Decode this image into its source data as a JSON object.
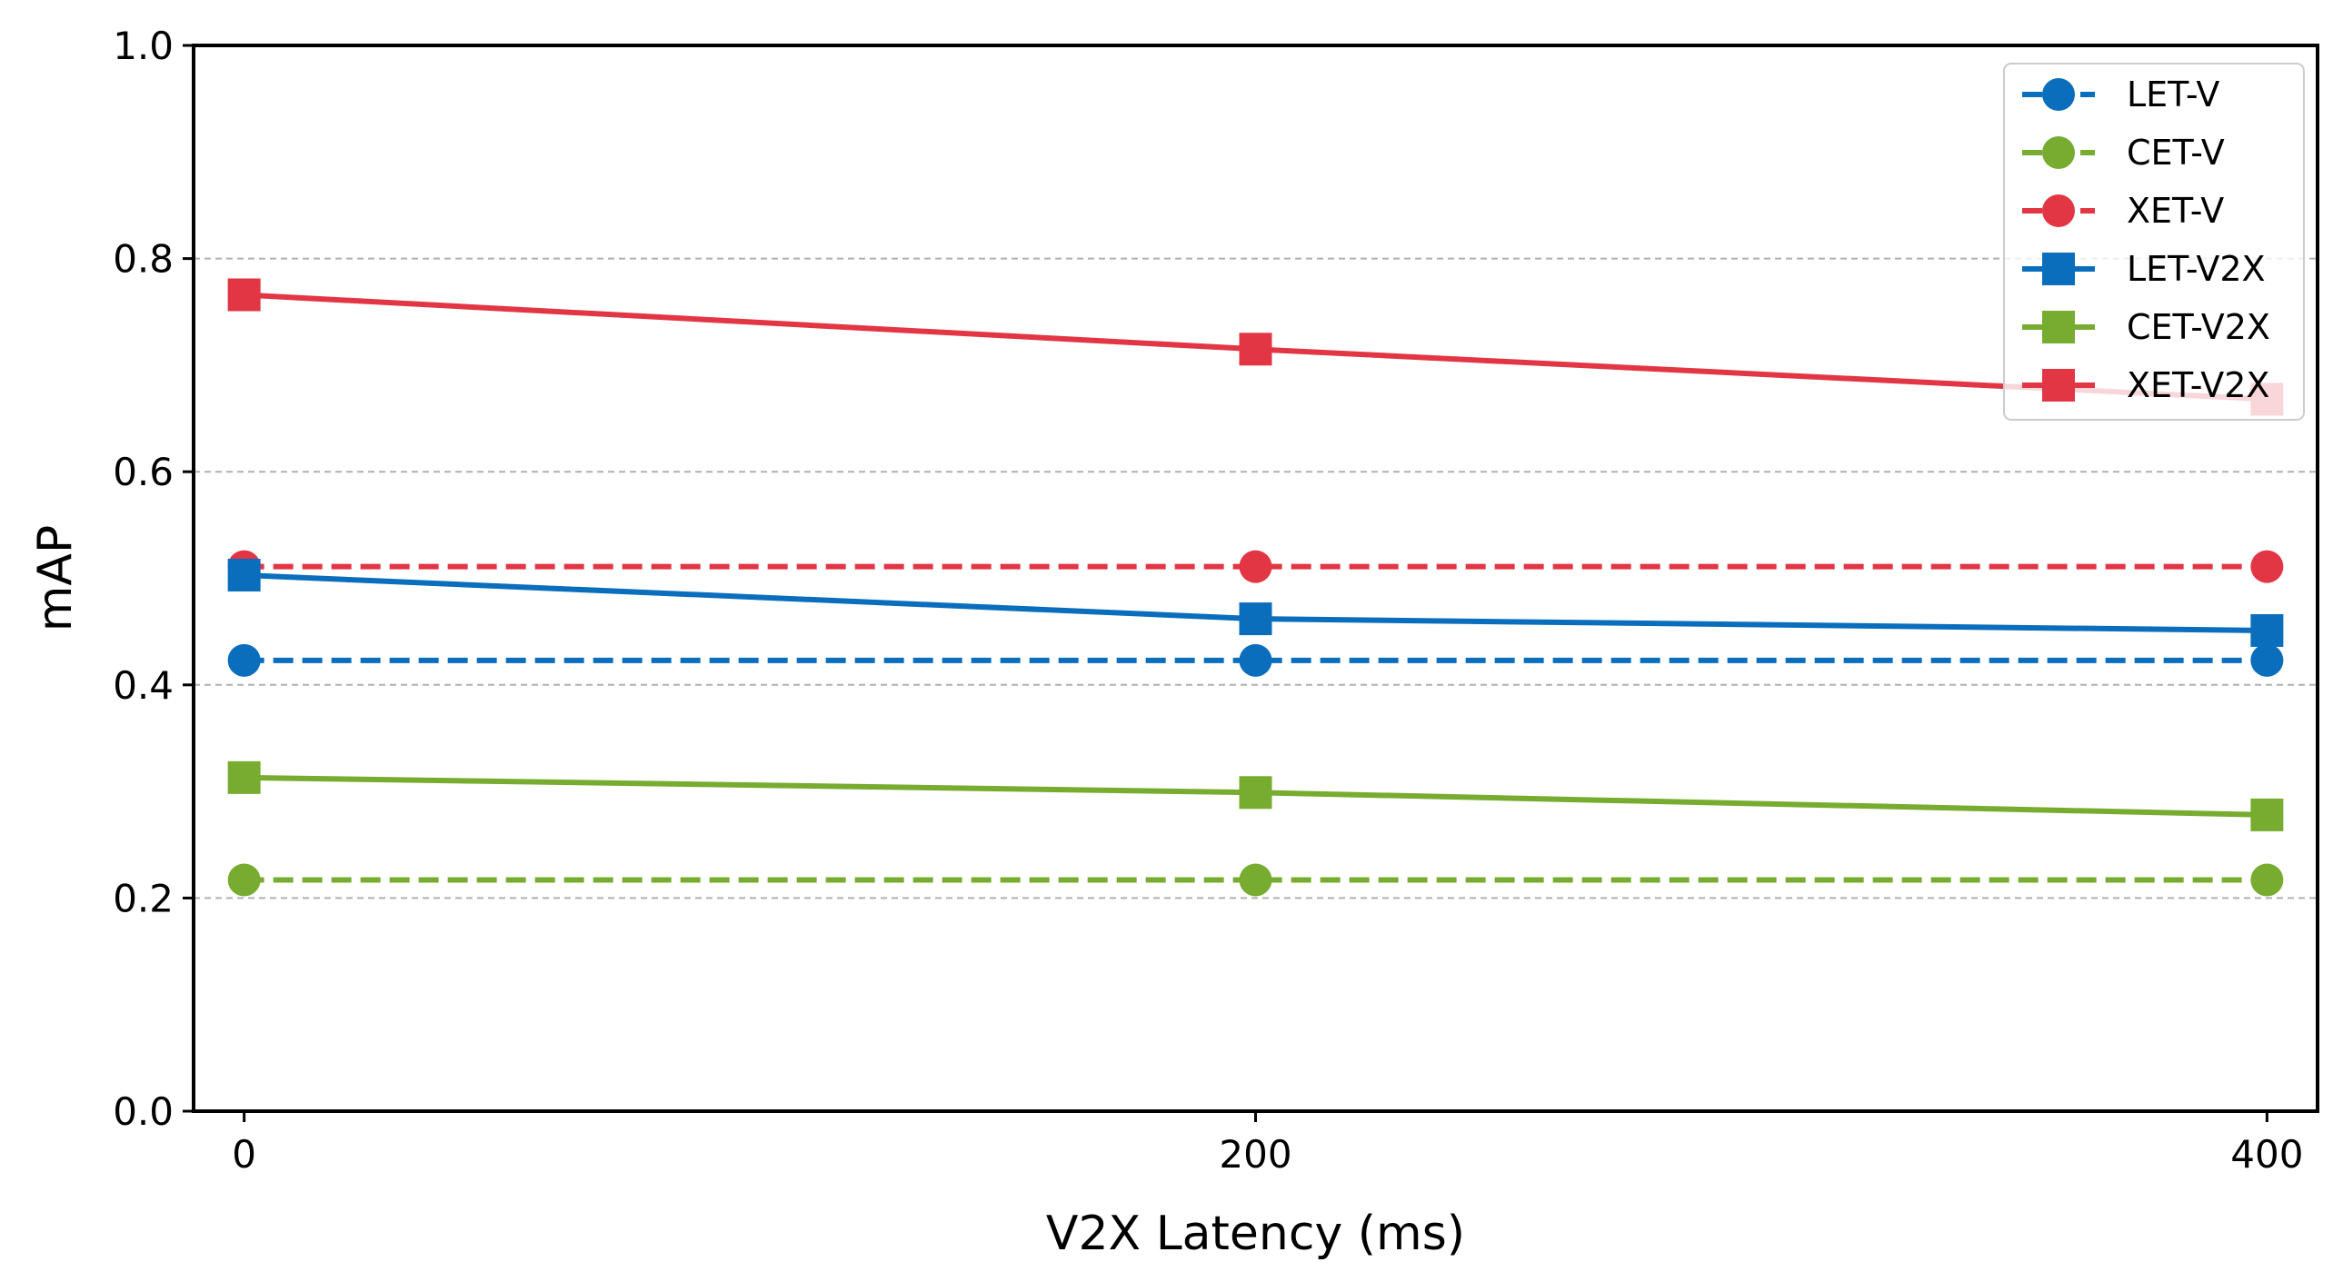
{
  "chart_data": {
    "type": "line",
    "title": "",
    "xlabel": "V2X Latency (ms)",
    "ylabel": "mAP",
    "x": [
      0,
      200,
      400
    ],
    "x_ticks": [
      "0",
      "200",
      "400"
    ],
    "xlim": [
      -10,
      410
    ],
    "ylim": [
      0.0,
      1.0
    ],
    "y_ticks": [
      "0.0",
      "0.2",
      "0.4",
      "0.6",
      "0.8",
      "1.0"
    ],
    "grid": "horizontal dashed",
    "legend_position": "top-right",
    "series": [
      {
        "name": "LET-V",
        "values": [
          0.423,
          0.423,
          0.423
        ],
        "color": "#0a6ebd",
        "linestyle": "dashed",
        "marker": "circle"
      },
      {
        "name": "CET-V",
        "values": [
          0.217,
          0.217,
          0.217
        ],
        "color": "#77ac30",
        "linestyle": "dashed",
        "marker": "circle"
      },
      {
        "name": "XET-V",
        "values": [
          0.511,
          0.511,
          0.511
        ],
        "color": "#e23645",
        "linestyle": "dashed",
        "marker": "circle"
      },
      {
        "name": "LET-V2X",
        "values": [
          0.503,
          0.462,
          0.451
        ],
        "color": "#0a6ebd",
        "linestyle": "solid",
        "marker": "square"
      },
      {
        "name": "CET-V2X",
        "values": [
          0.313,
          0.299,
          0.278
        ],
        "color": "#77ac30",
        "linestyle": "solid",
        "marker": "square"
      },
      {
        "name": "XET-V2X",
        "values": [
          0.766,
          0.715,
          0.668
        ],
        "color": "#e23645",
        "linestyle": "solid",
        "marker": "square"
      }
    ]
  }
}
